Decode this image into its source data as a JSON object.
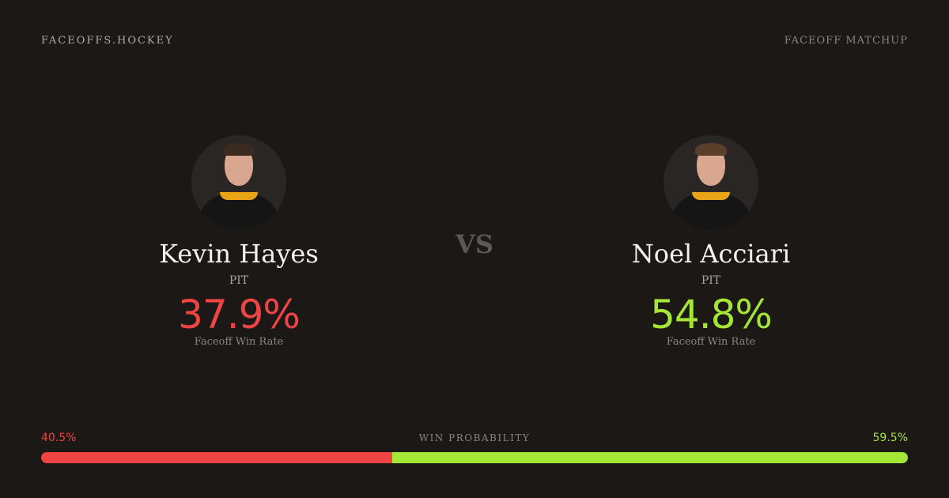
{
  "header": {
    "brand": "FACEOFFS.HOCKEY",
    "page_label": "FACEOFF MATCHUP"
  },
  "vs_label": "VS",
  "colors": {
    "left": "#ef4444",
    "right": "#a3e635"
  },
  "players": [
    {
      "name": "Kevin Hayes",
      "team": "PIT",
      "win_rate": "37.9%",
      "win_rate_label": "Faceoff Win Rate"
    },
    {
      "name": "Noel Acciari",
      "team": "PIT",
      "win_rate": "54.8%",
      "win_rate_label": "Faceoff Win Rate"
    }
  ],
  "win_probability": {
    "title": "WIN PROBABILITY",
    "left": "40.5%",
    "right": "59.5%",
    "left_value": 40.5,
    "right_value": 59.5
  }
}
